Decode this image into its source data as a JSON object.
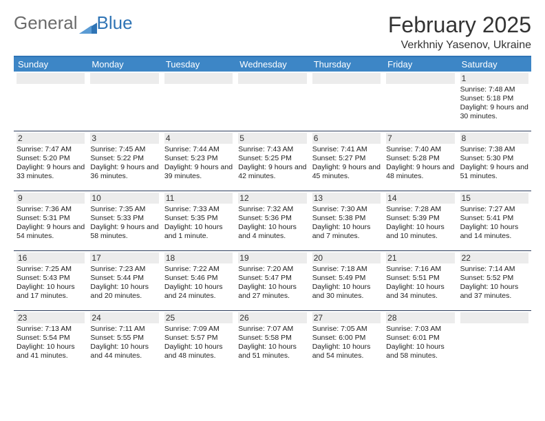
{
  "logo": {
    "word1": "General",
    "word2": "Blue",
    "tri_color": "#2f74b5"
  },
  "title": "February 2025",
  "subtitle": "Verkhniy Yasenov, Ukraine",
  "colors": {
    "header_bar": "#3d86c6",
    "top_border": "#2f74b5",
    "week_border": "#2a3a5a",
    "daynum_bg": "#ececec",
    "text": "#222222"
  },
  "font_sizes": {
    "title": 32,
    "subtitle": 16,
    "dow": 13,
    "daynum": 12,
    "info": 10.5
  },
  "days_of_week": [
    "Sunday",
    "Monday",
    "Tuesday",
    "Wednesday",
    "Thursday",
    "Friday",
    "Saturday"
  ],
  "weeks": [
    [
      null,
      null,
      null,
      null,
      null,
      null,
      {
        "n": "1",
        "sunrise": "7:48 AM",
        "sunset": "5:18 PM",
        "daylight": "9 hours and 30 minutes."
      }
    ],
    [
      {
        "n": "2",
        "sunrise": "7:47 AM",
        "sunset": "5:20 PM",
        "daylight": "9 hours and 33 minutes."
      },
      {
        "n": "3",
        "sunrise": "7:45 AM",
        "sunset": "5:22 PM",
        "daylight": "9 hours and 36 minutes."
      },
      {
        "n": "4",
        "sunrise": "7:44 AM",
        "sunset": "5:23 PM",
        "daylight": "9 hours and 39 minutes."
      },
      {
        "n": "5",
        "sunrise": "7:43 AM",
        "sunset": "5:25 PM",
        "daylight": "9 hours and 42 minutes."
      },
      {
        "n": "6",
        "sunrise": "7:41 AM",
        "sunset": "5:27 PM",
        "daylight": "9 hours and 45 minutes."
      },
      {
        "n": "7",
        "sunrise": "7:40 AM",
        "sunset": "5:28 PM",
        "daylight": "9 hours and 48 minutes."
      },
      {
        "n": "8",
        "sunrise": "7:38 AM",
        "sunset": "5:30 PM",
        "daylight": "9 hours and 51 minutes."
      }
    ],
    [
      {
        "n": "9",
        "sunrise": "7:36 AM",
        "sunset": "5:31 PM",
        "daylight": "9 hours and 54 minutes."
      },
      {
        "n": "10",
        "sunrise": "7:35 AM",
        "sunset": "5:33 PM",
        "daylight": "9 hours and 58 minutes."
      },
      {
        "n": "11",
        "sunrise": "7:33 AM",
        "sunset": "5:35 PM",
        "daylight": "10 hours and 1 minute."
      },
      {
        "n": "12",
        "sunrise": "7:32 AM",
        "sunset": "5:36 PM",
        "daylight": "10 hours and 4 minutes."
      },
      {
        "n": "13",
        "sunrise": "7:30 AM",
        "sunset": "5:38 PM",
        "daylight": "10 hours and 7 minutes."
      },
      {
        "n": "14",
        "sunrise": "7:28 AM",
        "sunset": "5:39 PM",
        "daylight": "10 hours and 10 minutes."
      },
      {
        "n": "15",
        "sunrise": "7:27 AM",
        "sunset": "5:41 PM",
        "daylight": "10 hours and 14 minutes."
      }
    ],
    [
      {
        "n": "16",
        "sunrise": "7:25 AM",
        "sunset": "5:43 PM",
        "daylight": "10 hours and 17 minutes."
      },
      {
        "n": "17",
        "sunrise": "7:23 AM",
        "sunset": "5:44 PM",
        "daylight": "10 hours and 20 minutes."
      },
      {
        "n": "18",
        "sunrise": "7:22 AM",
        "sunset": "5:46 PM",
        "daylight": "10 hours and 24 minutes."
      },
      {
        "n": "19",
        "sunrise": "7:20 AM",
        "sunset": "5:47 PM",
        "daylight": "10 hours and 27 minutes."
      },
      {
        "n": "20",
        "sunrise": "7:18 AM",
        "sunset": "5:49 PM",
        "daylight": "10 hours and 30 minutes."
      },
      {
        "n": "21",
        "sunrise": "7:16 AM",
        "sunset": "5:51 PM",
        "daylight": "10 hours and 34 minutes."
      },
      {
        "n": "22",
        "sunrise": "7:14 AM",
        "sunset": "5:52 PM",
        "daylight": "10 hours and 37 minutes."
      }
    ],
    [
      {
        "n": "23",
        "sunrise": "7:13 AM",
        "sunset": "5:54 PM",
        "daylight": "10 hours and 41 minutes."
      },
      {
        "n": "24",
        "sunrise": "7:11 AM",
        "sunset": "5:55 PM",
        "daylight": "10 hours and 44 minutes."
      },
      {
        "n": "25",
        "sunrise": "7:09 AM",
        "sunset": "5:57 PM",
        "daylight": "10 hours and 48 minutes."
      },
      {
        "n": "26",
        "sunrise": "7:07 AM",
        "sunset": "5:58 PM",
        "daylight": "10 hours and 51 minutes."
      },
      {
        "n": "27",
        "sunrise": "7:05 AM",
        "sunset": "6:00 PM",
        "daylight": "10 hours and 54 minutes."
      },
      {
        "n": "28",
        "sunrise": "7:03 AM",
        "sunset": "6:01 PM",
        "daylight": "10 hours and 58 minutes."
      },
      null
    ]
  ]
}
